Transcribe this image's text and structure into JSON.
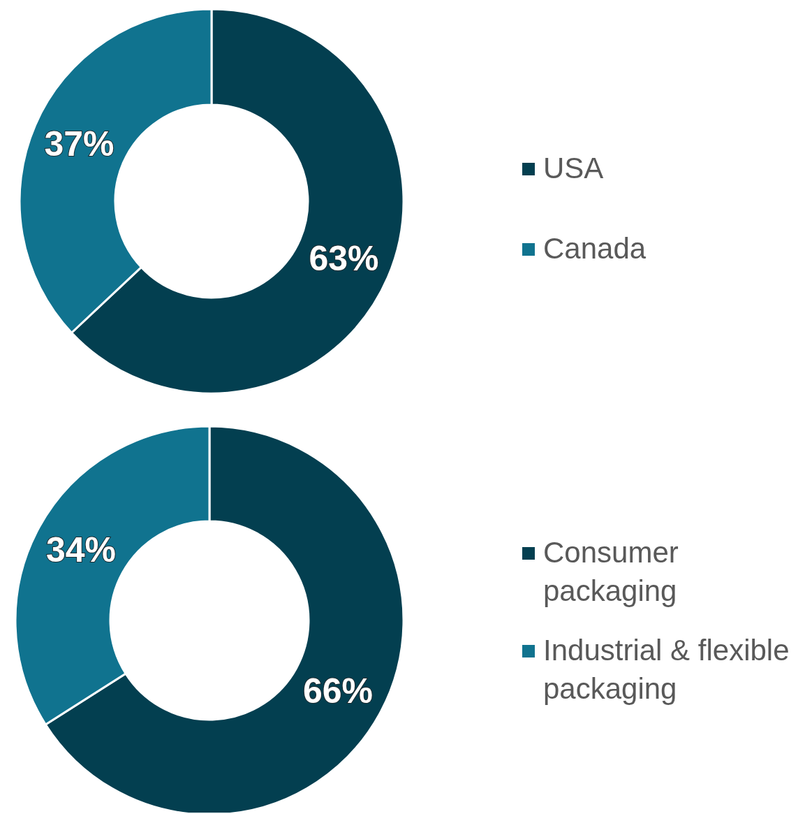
{
  "chart_data": [
    {
      "type": "donut",
      "categories": [
        "USA",
        "Canada"
      ],
      "values": [
        63,
        37
      ],
      "colors": [
        "#033f50",
        "#10738f"
      ],
      "value_labels": [
        "63%",
        "37%"
      ],
      "legend": "right"
    },
    {
      "type": "donut",
      "categories": [
        "Consumer packaging",
        "Industrial & flexible packaging"
      ],
      "values": [
        66,
        34
      ],
      "colors": [
        "#033f50",
        "#10738f"
      ],
      "value_labels": [
        "66%",
        "34%"
      ],
      "legend": "right"
    }
  ]
}
